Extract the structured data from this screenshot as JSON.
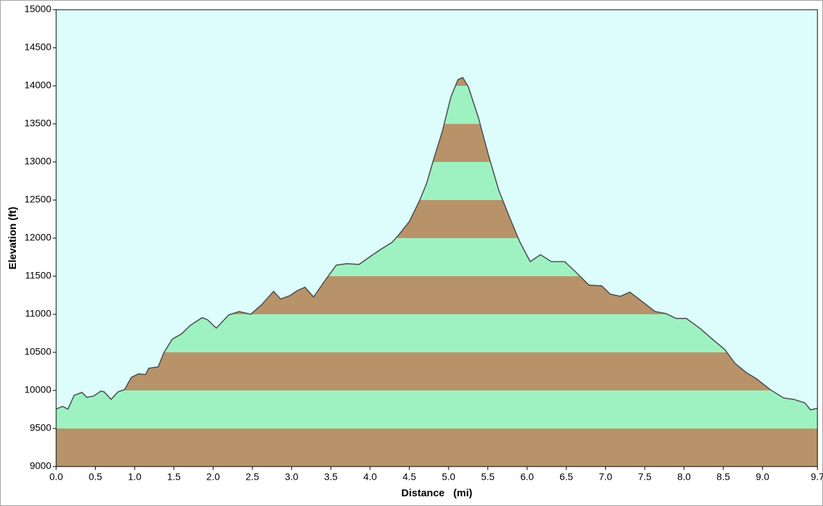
{
  "chart_data": {
    "type": "area",
    "x_label": "Distance   (mi)",
    "y_label": "Elevation (ft)",
    "x": [
      0,
      0.08,
      0.15,
      0.23,
      0.33,
      0.39,
      0.48,
      0.57,
      0.61,
      0.7,
      0.79,
      0.87,
      0.96,
      1.05,
      1.14,
      1.18,
      1.3,
      1.37,
      1.48,
      1.6,
      1.71,
      1.86,
      1.93,
      2.04,
      2.2,
      2.33,
      2.48,
      2.62,
      2.77,
      2.86,
      2.98,
      3.07,
      3.17,
      3.28,
      3.44,
      3.57,
      3.7,
      3.86,
      4.01,
      4.14,
      4.28,
      4.36,
      4.5,
      4.63,
      4.72,
      4.81,
      4.92,
      5.03,
      5.12,
      5.18,
      5.25,
      5.38,
      5.51,
      5.64,
      5.78,
      5.91,
      6.04,
      6.17,
      6.31,
      6.48,
      6.61,
      6.79,
      6.95,
      7.06,
      7.19,
      7.31,
      7.46,
      7.63,
      7.77,
      7.9,
      8.03,
      8.21,
      8.34,
      8.52,
      8.65,
      8.79,
      8.92,
      9.1,
      9.27,
      9.4,
      9.54,
      9.61,
      9.7
    ],
    "y": [
      9755,
      9790,
      9755,
      9936,
      9973,
      9909,
      9927,
      9991,
      9982,
      9882,
      9982,
      10009,
      10173,
      10218,
      10209,
      10291,
      10309,
      10491,
      10673,
      10745,
      10855,
      10955,
      10927,
      10818,
      10991,
      11036,
      11000,
      11127,
      11300,
      11200,
      11245,
      11309,
      11355,
      11227,
      11464,
      11645,
      11664,
      11655,
      11764,
      11855,
      11945,
      12036,
      12218,
      12491,
      12718,
      13036,
      13400,
      13855,
      14082,
      14109,
      13991,
      13582,
      13082,
      12627,
      12264,
      11945,
      11691,
      11782,
      11691,
      11691,
      11564,
      11382,
      11373,
      11264,
      11236,
      11291,
      11173,
      11036,
      11009,
      10945,
      10945,
      10809,
      10691,
      10536,
      10355,
      10236,
      10155,
      10009,
      9900,
      9882,
      9836,
      9745,
      9764
    ],
    "xlim": [
      0,
      9.7
    ],
    "ylim": [
      9000,
      15000
    ],
    "xticks": [
      {
        "value": 0,
        "label": "0.0"
      },
      0.5,
      {
        "value": 1,
        "label": "1.0"
      },
      1.5,
      {
        "value": 2,
        "label": "2.0"
      },
      2.5,
      {
        "value": 3,
        "label": "3.0"
      },
      3.5,
      {
        "value": 4,
        "label": "4.0"
      },
      4.5,
      {
        "value": 5,
        "label": "5.0"
      },
      5.5,
      {
        "value": 6,
        "label": "6.0"
      },
      6.5,
      {
        "value": 7,
        "label": "7.0"
      },
      7.5,
      {
        "value": 8,
        "label": "8.0"
      },
      8.5,
      {
        "value": 9,
        "label": "9.0"
      },
      9.7
    ],
    "yticks": [
      9000,
      9500,
      10000,
      10500,
      11000,
      11500,
      12000,
      12500,
      13000,
      13500,
      14000,
      14500,
      15000
    ],
    "band_colors": [
      "#b8936a",
      "#9ef2c2"
    ],
    "line_color": "#505050",
    "background": "#dcfdfc"
  }
}
